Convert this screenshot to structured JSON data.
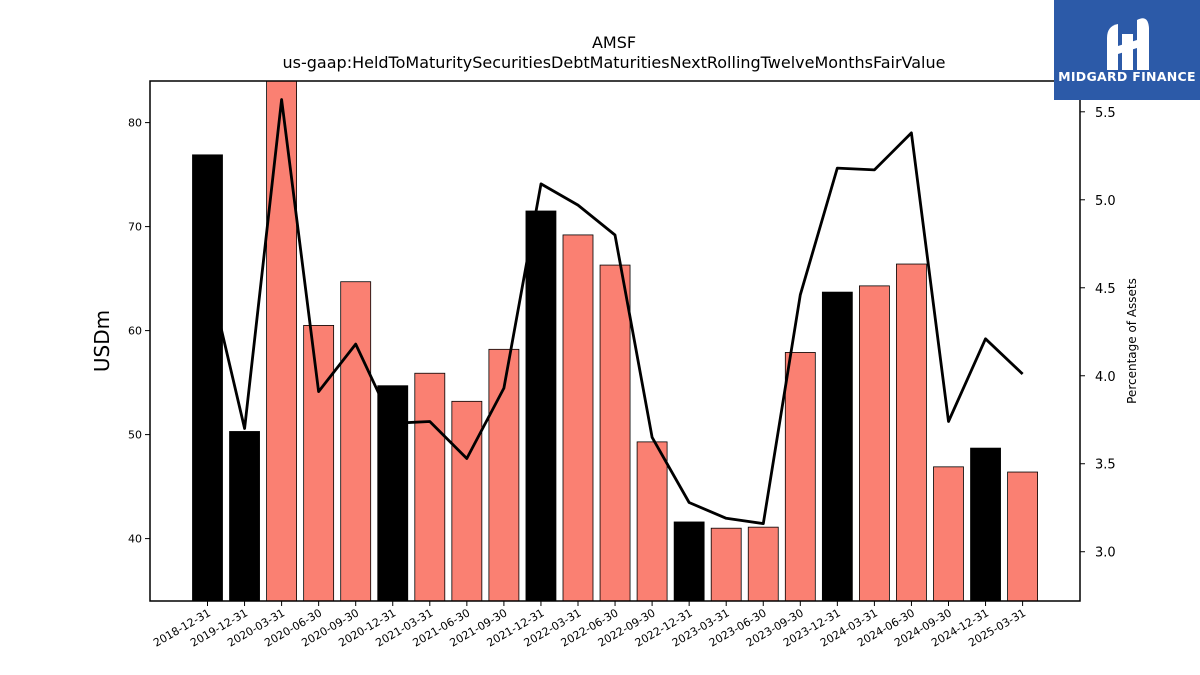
{
  "chart_data": {
    "type": "bar",
    "title": "AMSF",
    "subtitle": "us-gaap:HeldToMaturitySecuritiesDebtMaturitiesNextRollingTwelveMonthsFairValue",
    "ylabel": "USDm",
    "y2label": "Percentage of Assets",
    "ylim": [
      34,
      84
    ],
    "y2lim": [
      2.72,
      5.675
    ],
    "yticks": [
      40,
      50,
      60,
      70,
      80
    ],
    "y2ticks": [
      "3.0",
      "3.5",
      "4.0",
      "4.5",
      "5.0",
      "5.5"
    ],
    "categories": [
      "2018-12-31",
      "2019-12-31",
      "2020-03-31",
      "2020-06-30",
      "2020-09-30",
      "2020-12-31",
      "2021-03-31",
      "2021-06-30",
      "2021-09-30",
      "2021-12-31",
      "2022-03-31",
      "2022-06-30",
      "2022-09-30",
      "2022-12-31",
      "2023-03-31",
      "2023-06-30",
      "2023-09-30",
      "2023-12-31",
      "2024-03-31",
      "2024-06-30",
      "2024-09-30",
      "2024-12-31",
      "2025-03-31"
    ],
    "series": [
      {
        "type": "bar",
        "values": [
          76.9,
          50.3,
          84.5,
          60.5,
          64.7,
          54.7,
          55.9,
          53.2,
          58.2,
          71.5,
          69.2,
          66.3,
          49.3,
          41.6,
          41.0,
          41.1,
          57.9,
          63.7,
          64.3,
          66.4,
          46.9,
          48.7,
          46.4
        ],
        "colors": [
          "#000000",
          "#000000",
          "#fa8072",
          "#fa8072",
          "#fa8072",
          "#000000",
          "#fa8072",
          "#fa8072",
          "#fa8072",
          "#000000",
          "#fa8072",
          "#fa8072",
          "#fa8072",
          "#000000",
          "#fa8072",
          "#fa8072",
          "#fa8072",
          "#000000",
          "#fa8072",
          "#fa8072",
          "#fa8072",
          "#000000",
          "#fa8072"
        ]
      },
      {
        "type": "line",
        "axis": "right",
        "values": [
          4.6,
          3.7,
          5.57,
          3.91,
          4.18,
          3.73,
          3.74,
          3.53,
          3.93,
          5.09,
          4.97,
          4.8,
          3.65,
          3.28,
          3.19,
          3.16,
          4.46,
          5.18,
          5.17,
          5.38,
          3.74,
          4.21,
          4.01
        ],
        "color": "#000000"
      }
    ],
    "grid": false,
    "legend": "none"
  },
  "logo": {
    "text": "MIDGARD FINANCE",
    "background": "#2c5aa8"
  }
}
